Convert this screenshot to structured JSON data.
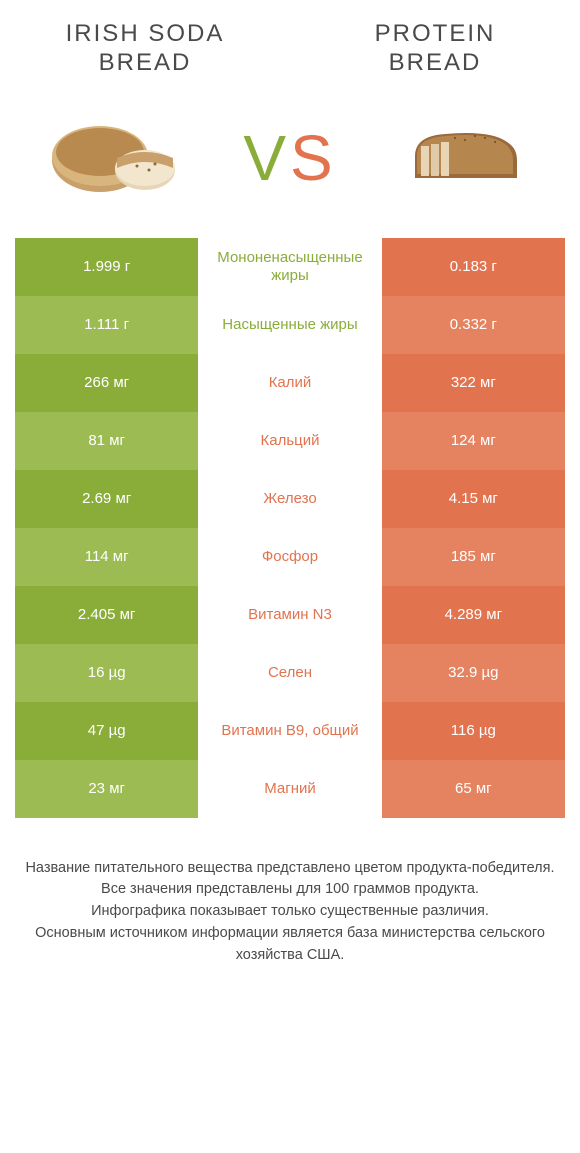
{
  "colors": {
    "left_dark": "#8aad3a",
    "left_light": "#9cbb52",
    "right_dark": "#e2734f",
    "right_light": "#e58360",
    "mid_text_left": "#8aad3a",
    "mid_text_right": "#e2734f",
    "title_color": "#4a4a4a",
    "footer_color": "#4a4a4a"
  },
  "header": {
    "left_title": "Irish soda bread",
    "right_title": "Protein bread"
  },
  "vs": {
    "v": "V",
    "s": "S"
  },
  "rows": [
    {
      "left": "1.999 г",
      "mid": "Мононенасыщенные жиры",
      "right": "0.183 г",
      "winner": "left"
    },
    {
      "left": "1.111 г",
      "mid": "Насыщенные жиры",
      "right": "0.332 г",
      "winner": "left"
    },
    {
      "left": "266 мг",
      "mid": "Калий",
      "right": "322 мг",
      "winner": "right"
    },
    {
      "left": "81 мг",
      "mid": "Кальций",
      "right": "124 мг",
      "winner": "right"
    },
    {
      "left": "2.69 мг",
      "mid": "Железо",
      "right": "4.15 мг",
      "winner": "right"
    },
    {
      "left": "114 мг",
      "mid": "Фосфор",
      "right": "185 мг",
      "winner": "right"
    },
    {
      "left": "2.405 мг",
      "mid": "Витамин N3",
      "right": "4.289 мг",
      "winner": "right"
    },
    {
      "left": "16 µg",
      "mid": "Селен",
      "right": "32.9 µg",
      "winner": "right"
    },
    {
      "left": "47 µg",
      "mid": "Витамин B9, общий",
      "right": "116 µg",
      "winner": "right"
    },
    {
      "left": "23 мг",
      "mid": "Магний",
      "right": "65 мг",
      "winner": "right"
    }
  ],
  "footer": {
    "line1": "Название питательного вещества представлено цветом продукта-победителя.",
    "line2": "Все значения представлены для 100 граммов продукта.",
    "line3": "Инфографика показывает только существенные различия.",
    "line4": "Основным источником информации является база министерства сельского хозяйства США."
  }
}
